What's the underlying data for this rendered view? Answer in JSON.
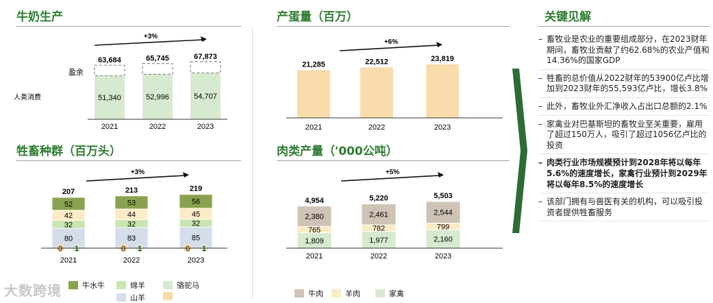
{
  "titles": {
    "milk": "牛奶生产",
    "eggs": "产蛋量（百万）",
    "livestock": "牲畜种群（百万头）",
    "meat": "肉类产量（'000公吨）",
    "insights": "关键见解"
  },
  "milk_labels": {
    "surplus": "盈余",
    "human": "人类消费"
  },
  "insights": [
    {
      "text": "畜牧业是农业的重要组成部分，在2023财年期间，畜牧业贡献了约62.68%的农业产值和14.36%的国家GDP",
      "bold": false
    },
    {
      "text": "牲畜的总价值从2022财年的53900亿卢比增加到2023财年的55,593亿卢比，增长3.8%",
      "bold": false
    },
    {
      "text": "此外，畜牧业外汇净收入占出口总额的2.1%",
      "bold": false
    },
    {
      "text": "家禽业对巴基斯坦的畜牧业至关重要，雇用了超过150万人，吸引了超过1056亿卢比的投资",
      "bold": false
    },
    {
      "text": "肉类行业市场规模预计到2028年将以每年5.6%的速度增长，家禽行业预计到2029年将以每年8.5%的速度增长",
      "bold": true
    },
    {
      "text": "该部门拥有与兽医有关的机构，可以吸引投资者提供牲畜服务",
      "bold": false
    }
  ],
  "livestock_legend": [
    {
      "name": "牛水牛",
      "color": "#8aa24f"
    },
    {
      "name": "绵羊",
      "color": "#c9e5b0"
    },
    {
      "name": "骆驼马",
      "color": "#d6ead0"
    },
    {
      "name": "山羊",
      "color": "#d4dde9"
    },
    {
      "name": "",
      "color": "#f8dcab"
    }
  ],
  "meat_legend": [
    {
      "name": "牛肉",
      "color": "#cfc3b6"
    },
    {
      "name": "羊肉",
      "color": "#fbecc6"
    },
    {
      "name": "家禽",
      "color": "#d6ead0"
    }
  ],
  "watermark": "大数跨境",
  "chart_data": [
    {
      "id": "milk",
      "type": "bar",
      "categories": [
        "2021",
        "2022",
        "2023"
      ],
      "series": [
        {
          "name": "人类消费",
          "values": [
            51340,
            52996,
            54707
          ],
          "labels": [
            "51,340",
            "52,996",
            "54,707"
          ],
          "color": "#d6ead0"
        },
        {
          "name": "盈余",
          "values": [
            12344,
            12749,
            13166
          ],
          "color": "#ffffff",
          "dashed": true
        }
      ],
      "totals": [
        "63,684",
        "65,745",
        "67,873"
      ],
      "growth": "+3%"
    },
    {
      "id": "eggs",
      "type": "bar",
      "categories": [
        "2021",
        "2022",
        "2023"
      ],
      "values": [
        21285,
        22512,
        23819
      ],
      "labels": [
        "21,285",
        "22,512",
        "23,819"
      ],
      "color": "#f8dcab",
      "growth": "+6%"
    },
    {
      "id": "livestock",
      "type": "bar",
      "stacked": true,
      "categories": [
        "2021",
        "2022",
        "2023"
      ],
      "series": [
        {
          "values": [
            0,
            0,
            0
          ],
          "color": "#f8dcab"
        },
        {
          "values": [
            1,
            1,
            1
          ],
          "color": "#d6ead0"
        },
        {
          "values": [
            80,
            83,
            85
          ],
          "color": "#d4dde9"
        },
        {
          "values": [
            32,
            32,
            32
          ],
          "color": "#c9e5b0"
        },
        {
          "values": [
            42,
            44,
            45
          ],
          "color": "#fbecc6"
        },
        {
          "values": [
            52,
            53,
            56
          ],
          "color": "#8aa24f"
        }
      ],
      "totals": [
        207,
        213,
        219
      ],
      "growth": "+3%"
    },
    {
      "id": "meat",
      "type": "bar",
      "stacked": true,
      "categories": [
        "2021",
        "2022",
        "2023"
      ],
      "series": [
        {
          "name": "家禽",
          "values": [
            1809,
            1977,
            2160
          ],
          "labels": [
            "1,809",
            "1,977",
            "2,160"
          ],
          "color": "#d6ead0"
        },
        {
          "name": "羊肉",
          "values": [
            765,
            782,
            799
          ],
          "labels": [
            "765",
            "782",
            "799"
          ],
          "color": "#fbecc6"
        },
        {
          "name": "牛肉",
          "values": [
            2380,
            2461,
            2544
          ],
          "labels": [
            "2,380",
            "2,461",
            "2,544"
          ],
          "color": "#cfc3b6"
        }
      ],
      "totals": [
        "4,954",
        "5,220",
        "5,503"
      ],
      "growth": "+5%"
    }
  ]
}
